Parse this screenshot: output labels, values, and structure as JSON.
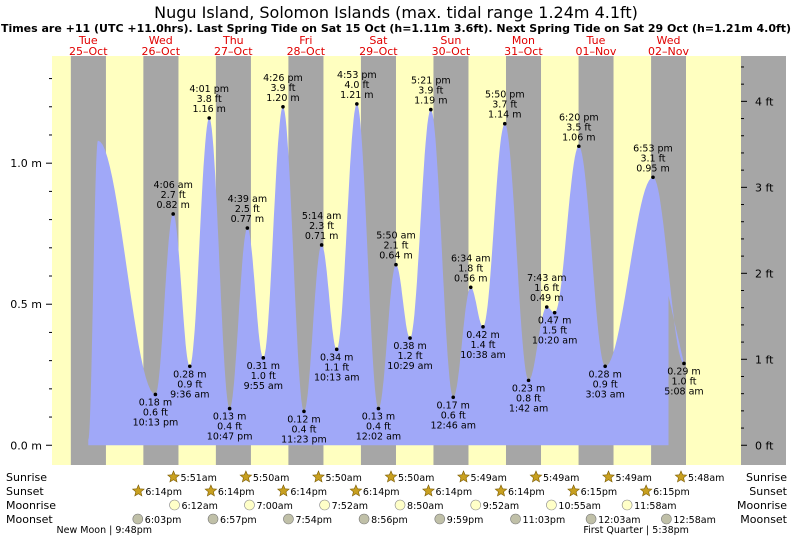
{
  "chart_data": {
    "type": "area",
    "title": "Nugu Island, Solomon Islands (max. tidal range 1.24m 4.1ft)",
    "subtitle": "Times are +11 (UTC +11.0hrs). Last Spring Tide on Sat 15 Oct (h=1.11m 3.6ft). Next Spring Tide on Sat 29 Oct (h=1.21m 4.0ft)",
    "days": [
      {
        "dow": "Tue",
        "date": "25–Oct"
      },
      {
        "dow": "Wed",
        "date": "26–Oct"
      },
      {
        "dow": "Thu",
        "date": "27–Oct"
      },
      {
        "dow": "Fri",
        "date": "28–Oct"
      },
      {
        "dow": "Sat",
        "date": "29–Oct"
      },
      {
        "dow": "Sun",
        "date": "30–Oct"
      },
      {
        "dow": "Mon",
        "date": "31–Oct"
      },
      {
        "dow": "Tue",
        "date": "01–Nov"
      },
      {
        "dow": "Wed",
        "date": "02–Nov"
      }
    ],
    "x_unit": "hours since 00:00 25-Oct",
    "y_left_ticks": [
      {
        "v": 0.0,
        "label": "0.0 m"
      },
      {
        "v": 0.5,
        "label": "0.5 m"
      },
      {
        "v": 1.0,
        "label": "1.0 m"
      }
    ],
    "y_right_ticks": [
      {
        "ft": 0,
        "label": "0 ft"
      },
      {
        "ft": 1,
        "label": "1 ft"
      },
      {
        "ft": 2,
        "label": "2 ft"
      },
      {
        "ft": 3,
        "label": "3 ft"
      },
      {
        "ft": 4,
        "label": "4 ft"
      }
    ],
    "ylim": [
      -0.07,
      1.38
    ],
    "xlim": [
      -12,
      216
    ],
    "curve_start": {
      "t": 0,
      "h": 0.02
    },
    "curve_end": {
      "t": 192,
      "h": 0.53
    },
    "extra_peak": {
      "t": 3.2,
      "h": 1.08
    },
    "tides": [
      {
        "t": 22.22,
        "h": 0.18,
        "time": "10:13 pm",
        "ft": "0.6 ft",
        "m": "0.18 m",
        "type": "low"
      },
      {
        "t": 28.1,
        "h": 0.82,
        "time": "4:06 am",
        "ft": "2.7 ft",
        "m": "0.82 m",
        "type": "high"
      },
      {
        "t": 33.6,
        "h": 0.28,
        "time": "9:36 am",
        "ft": "0.9 ft",
        "m": "0.28 m",
        "type": "low"
      },
      {
        "t": 40.02,
        "h": 1.16,
        "time": "4:01 pm",
        "ft": "3.8 ft",
        "m": "1.16 m",
        "type": "high"
      },
      {
        "t": 46.78,
        "h": 0.13,
        "time": "10:47 pm",
        "ft": "0.4 ft",
        "m": "0.13 m",
        "type": "low"
      },
      {
        "t": 52.65,
        "h": 0.77,
        "time": "4:39 am",
        "ft": "2.5 ft",
        "m": "0.77 m",
        "type": "high"
      },
      {
        "t": 57.92,
        "h": 0.31,
        "time": "9:55 am",
        "ft": "1.0 ft",
        "m": "0.31 m",
        "type": "low"
      },
      {
        "t": 64.43,
        "h": 1.2,
        "time": "4:26 pm",
        "ft": "3.9 ft",
        "m": "1.20 m",
        "type": "high"
      },
      {
        "t": 71.38,
        "h": 0.12,
        "time": "11:23 pm",
        "ft": "0.4 ft",
        "m": "0.12 m",
        "type": "low"
      },
      {
        "t": 77.23,
        "h": 0.71,
        "time": "5:14 am",
        "ft": "2.3 ft",
        "m": "0.71 m",
        "type": "high"
      },
      {
        "t": 82.22,
        "h": 0.34,
        "time": "10:13 am",
        "ft": "1.1 ft",
        "m": "0.34 m",
        "type": "low"
      },
      {
        "t": 88.88,
        "h": 1.21,
        "time": "4:53 pm",
        "ft": "4.0 ft",
        "m": "1.21 m",
        "type": "high"
      },
      {
        "t": 96.03,
        "h": 0.13,
        "time": "12:02 am",
        "ft": "0.4 ft",
        "m": "0.13 m",
        "type": "low"
      },
      {
        "t": 101.83,
        "h": 0.64,
        "time": "5:50 am",
        "ft": "2.1 ft",
        "m": "0.64 m",
        "type": "high"
      },
      {
        "t": 106.48,
        "h": 0.38,
        "time": "10:29 am",
        "ft": "1.2 ft",
        "m": "0.38 m",
        "type": "low"
      },
      {
        "t": 113.35,
        "h": 1.19,
        "time": "5:21 pm",
        "ft": "3.9 ft",
        "m": "1.19 m",
        "type": "high"
      },
      {
        "t": 120.77,
        "h": 0.17,
        "time": "12:46 am",
        "ft": "0.6 ft",
        "m": "0.17 m",
        "type": "low"
      },
      {
        "t": 126.57,
        "h": 0.56,
        "time": "6:34 am",
        "ft": "1.8 ft",
        "m": "0.56 m",
        "type": "high"
      },
      {
        "t": 130.63,
        "h": 0.42,
        "time": "10:38 am",
        "ft": "1.4 ft",
        "m": "0.42 m",
        "type": "low"
      },
      {
        "t": 137.83,
        "h": 1.14,
        "time": "5:50 pm",
        "ft": "3.7 ft",
        "m": "1.14 m",
        "type": "high"
      },
      {
        "t": 145.7,
        "h": 0.23,
        "time": "1:42 am",
        "ft": "0.8 ft",
        "m": "0.23 m",
        "type": "low"
      },
      {
        "t": 151.72,
        "h": 0.49,
        "time": "7:43 am",
        "ft": "1.6 ft",
        "m": "0.49 m",
        "type": "high"
      },
      {
        "t": 154.33,
        "h": 0.47,
        "time": "10:20 am",
        "ft": "1.5 ft",
        "m": "0.47 m",
        "type": "low"
      },
      {
        "t": 162.33,
        "h": 1.06,
        "time": "6:20 pm",
        "ft": "3.5 ft",
        "m": "1.06 m",
        "type": "high"
      },
      {
        "t": 171.05,
        "h": 0.28,
        "time": "3:03 am",
        "ft": "0.9 ft",
        "m": "0.28 m",
        "type": "low"
      },
      {
        "t": 186.88,
        "h": 0.95,
        "time": "6:53 pm",
        "ft": "3.1 ft",
        "m": "0.95 m",
        "type": "high"
      },
      {
        "t": 197.13,
        "h": 0.29,
        "time": "5:08 am",
        "ft": "1.0 ft",
        "m": "0.29 m",
        "type": "low"
      }
    ],
    "sunrise": [
      {
        "t": 29.85,
        "label": "5:51am"
      },
      {
        "t": 53.83,
        "label": "5:50am"
      },
      {
        "t": 77.83,
        "label": "5:50am"
      },
      {
        "t": 101.83,
        "label": "5:50am"
      },
      {
        "t": 125.82,
        "label": "5:49am"
      },
      {
        "t": 149.82,
        "label": "5:49am"
      },
      {
        "t": 173.82,
        "label": "5:49am"
      },
      {
        "t": 197.8,
        "label": "5:48am"
      }
    ],
    "sunset": [
      {
        "t": 18.23,
        "label": "6:14pm"
      },
      {
        "t": 42.23,
        "label": "6:14pm"
      },
      {
        "t": 66.23,
        "label": "6:14pm"
      },
      {
        "t": 90.23,
        "label": "6:14pm"
      },
      {
        "t": 114.23,
        "label": "6:14pm"
      },
      {
        "t": 138.23,
        "label": "6:14pm"
      },
      {
        "t": 162.25,
        "label": "6:15pm"
      },
      {
        "t": 186.25,
        "label": "6:15pm"
      }
    ],
    "moonrise": [
      {
        "t": 30.2,
        "label": "6:12am"
      },
      {
        "t": 55.0,
        "label": "7:00am"
      },
      {
        "t": 79.87,
        "label": "7:52am"
      },
      {
        "t": 104.83,
        "label": "8:50am"
      },
      {
        "t": 129.87,
        "label": "9:52am"
      },
      {
        "t": 154.92,
        "label": "10:55am"
      },
      {
        "t": 179.97,
        "label": "11:58am"
      }
    ],
    "moonset": [
      {
        "t": 18.05,
        "label": "6:03pm"
      },
      {
        "t": 42.95,
        "label": "6:57pm"
      },
      {
        "t": 67.9,
        "label": "7:54pm"
      },
      {
        "t": 92.93,
        "label": "8:56pm"
      },
      {
        "t": 117.98,
        "label": "9:59pm"
      },
      {
        "t": 143.05,
        "label": "11:03pm"
      },
      {
        "t": 168.05,
        "label": "12:03am"
      },
      {
        "t": 192.97,
        "label": "12:58am"
      }
    ],
    "row_labels": {
      "sunrise": "Sunrise",
      "sunset": "Sunset",
      "moonrise": "Moonrise",
      "moonset": "Moonset"
    },
    "phases": [
      {
        "t": 0.0,
        "label": "New Moon | 9:48pm"
      },
      {
        "t": 176.0,
        "label": "First Quarter | 5:38pm"
      }
    ],
    "colors": {
      "day": "#ffffc0",
      "night": "#a6a6a6",
      "tide": "#a0a8f8",
      "day_label": "#e00000",
      "axis_strip": "#a6a6a6"
    }
  }
}
